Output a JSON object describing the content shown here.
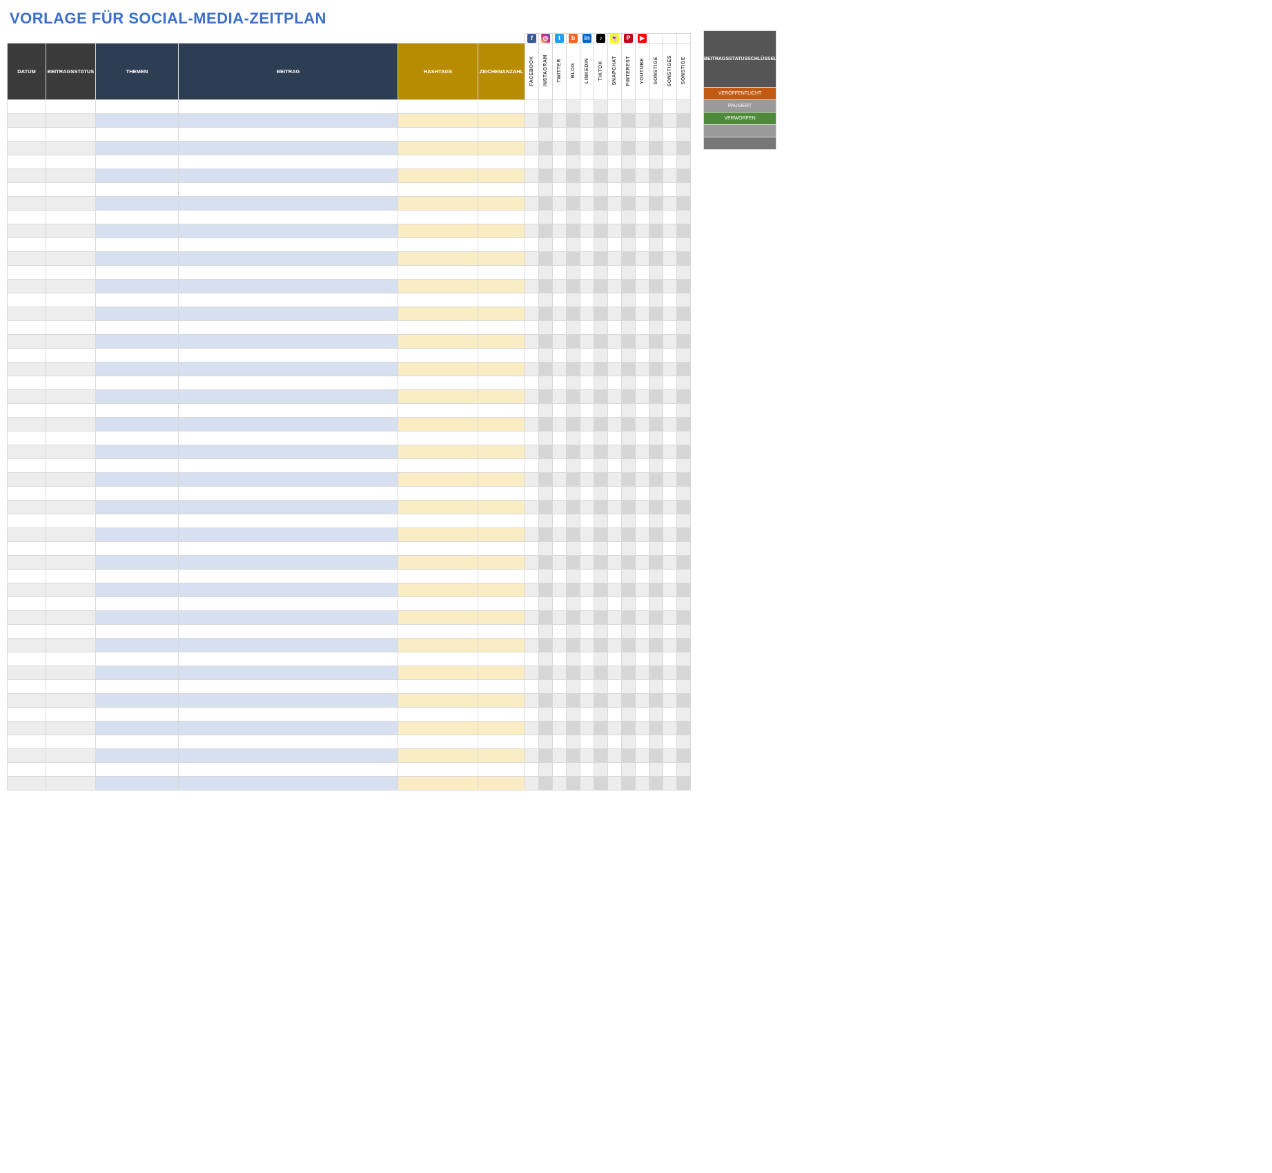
{
  "title": "VORLAGE FÜR SOCIAL-MEDIA-ZEITPLAN",
  "columns": {
    "datum": "DATUM",
    "status": "BEITRAGSSTATUS",
    "themen": "THEMEN",
    "beitrag": "BEITRAG",
    "hashtags": "HASHTAGS",
    "zeichen": "ZEICHENANZAHL"
  },
  "social_columns": [
    {
      "label": "FACEBOOK",
      "icon_bg": "#3b5998",
      "icon_glyph": "f"
    },
    {
      "label": "INSTAGRAM",
      "icon_bg": "linear-gradient(45deg,#feda75,#d62976,#4f5bd5)",
      "icon_glyph": "◎"
    },
    {
      "label": "TWITTER",
      "icon_bg": "#1da1f2",
      "icon_glyph": "t"
    },
    {
      "label": "BLOG",
      "icon_bg": "#f26522",
      "icon_glyph": "b"
    },
    {
      "label": "LINKEDIN",
      "icon_bg": "#0a66c2",
      "icon_glyph": "in"
    },
    {
      "label": "TIKTOK",
      "icon_bg": "#000000",
      "icon_glyph": "♪"
    },
    {
      "label": "SNAPCHAT",
      "icon_bg": "#fffc00",
      "icon_glyph": "👻",
      "icon_fg": "#000"
    },
    {
      "label": "PINTEREST",
      "icon_bg": "#bd081c",
      "icon_glyph": "P"
    },
    {
      "label": "YOUTUBE",
      "icon_bg": "#ff0000",
      "icon_glyph": "▶"
    },
    {
      "label": "SONSTIGE",
      "icon_bg": "",
      "icon_glyph": ""
    },
    {
      "label": "SONSTIGES",
      "icon_bg": "",
      "icon_glyph": ""
    },
    {
      "label": "SONSTIGE",
      "icon_bg": "",
      "icon_glyph": ""
    }
  ],
  "row_count": 50,
  "legend": {
    "title": "BEITRAGSSTATUSSCHLÜSSEL",
    "items": [
      {
        "label": "VERÖFFENTLICHT",
        "bg": "#c45a11"
      },
      {
        "label": "PAUSIERT",
        "bg": "#9a9a9a"
      },
      {
        "label": "VERWORFEN",
        "bg": "#4e8a3a"
      },
      {
        "label": "",
        "bg": "#9a9a9a"
      },
      {
        "label": "",
        "bg": "#777777"
      }
    ]
  },
  "colors": {
    "header_dark": "#3a3a3a",
    "header_navy": "#2e3e52",
    "header_gold": "#b88c00",
    "tint_blue": "#d6e0f0",
    "tint_cream": "#faecc3",
    "grid_border": "#d9d9d9",
    "row_grey": "#ededed",
    "row_grey2": "#d6d6d6",
    "title_color": "#3b6fc9"
  }
}
